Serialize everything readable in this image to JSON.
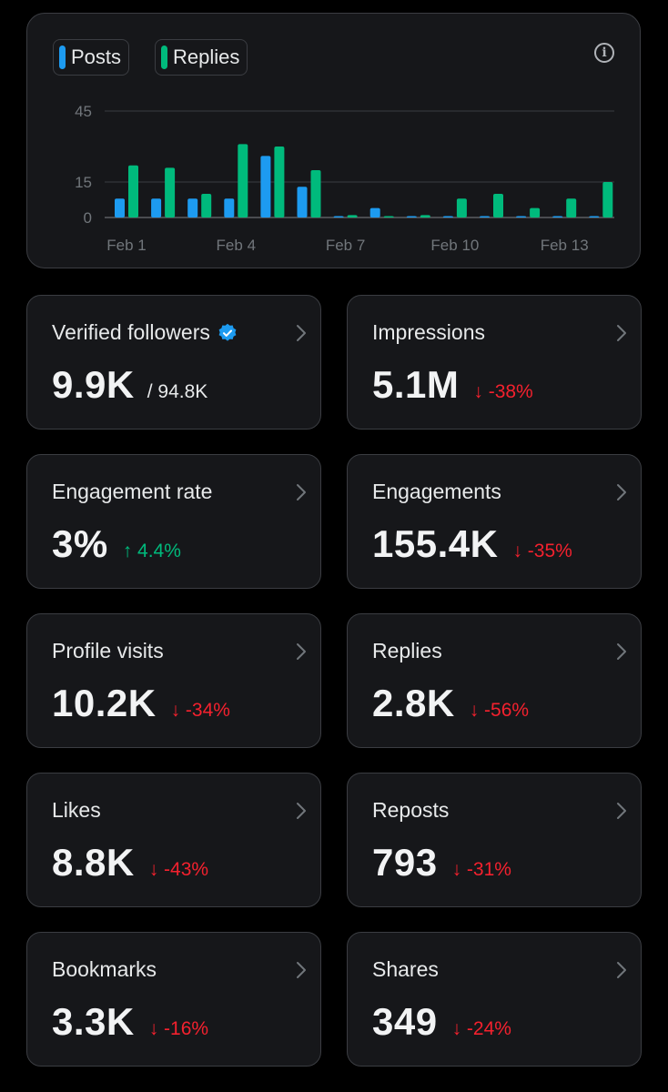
{
  "colors": {
    "posts": "#1d9bf0",
    "replies": "#00ba7c",
    "down": "#f4212e",
    "up": "#00ba7c",
    "verified": "#1d9bf0"
  },
  "legend": {
    "posts_label": "Posts",
    "replies_label": "Replies"
  },
  "info_icon": "info-circle-icon",
  "chart_data": {
    "type": "bar",
    "categories": [
      "Feb 1",
      "Feb 2",
      "Feb 3",
      "Feb 4",
      "Feb 5",
      "Feb 6",
      "Feb 7",
      "Feb 8",
      "Feb 9",
      "Feb 10",
      "Feb 11",
      "Feb 12",
      "Feb 13",
      "Feb 14"
    ],
    "x_tick_labels": [
      "Feb 1",
      "Feb 4",
      "Feb 7",
      "Feb 10",
      "Feb 13"
    ],
    "y_ticks": [
      0,
      15,
      45
    ],
    "ylim": [
      0,
      45
    ],
    "grid": true,
    "series": [
      {
        "name": "Posts",
        "values": [
          8,
          8,
          8,
          8,
          26,
          13,
          0,
          4,
          0,
          0,
          0,
          0,
          0,
          0
        ]
      },
      {
        "name": "Replies",
        "values": [
          22,
          21,
          10,
          31,
          30,
          20,
          1,
          0,
          1,
          8,
          10,
          4,
          8,
          15
        ]
      }
    ]
  },
  "stats": [
    {
      "title": "Verified followers",
      "value": "9.9K",
      "sub": "/ 94.8K",
      "delta": "",
      "direction": "",
      "verified": true
    },
    {
      "title": "Impressions",
      "value": "5.1M",
      "sub": "",
      "delta": "↓ -38%",
      "direction": "down"
    },
    {
      "title": "Engagement rate",
      "value": "3%",
      "sub": "",
      "delta": "↑ 4.4%",
      "direction": "up"
    },
    {
      "title": "Engagements",
      "value": "155.4K",
      "sub": "",
      "delta": "↓ -35%",
      "direction": "down"
    },
    {
      "title": "Profile visits",
      "value": "10.2K",
      "sub": "",
      "delta": "↓ -34%",
      "direction": "down"
    },
    {
      "title": "Replies",
      "value": "2.8K",
      "sub": "",
      "delta": "↓ -56%",
      "direction": "down"
    },
    {
      "title": "Likes",
      "value": "8.8K",
      "sub": "",
      "delta": "↓ -43%",
      "direction": "down"
    },
    {
      "title": "Reposts",
      "value": "793",
      "sub": "",
      "delta": "↓ -31%",
      "direction": "down"
    },
    {
      "title": "Bookmarks",
      "value": "3.3K",
      "sub": "",
      "delta": "↓ -16%",
      "direction": "down"
    },
    {
      "title": "Shares",
      "value": "349",
      "sub": "",
      "delta": "↓ -24%",
      "direction": "down"
    }
  ]
}
